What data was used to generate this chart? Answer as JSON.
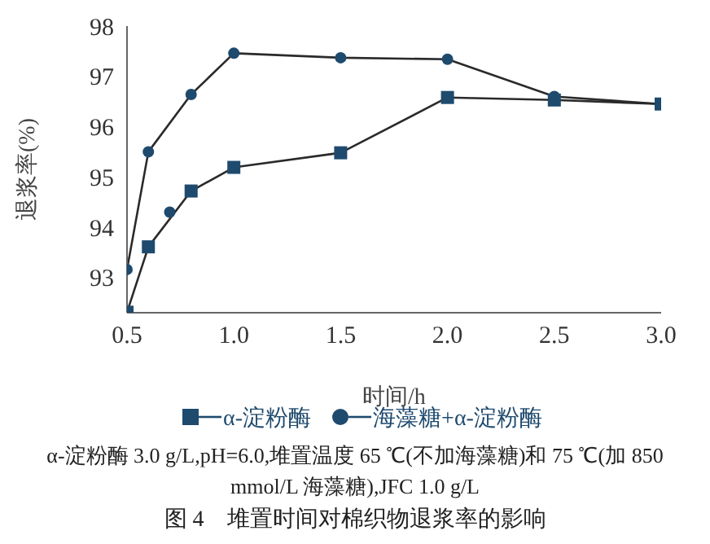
{
  "chart_data": {
    "type": "line",
    "title": "图 4　堆置时间对棉织物退浆率的影响",
    "xlabel": "时间/h",
    "ylabel": "退浆率(%)",
    "x": [
      0.5,
      0.6,
      0.8,
      1.0,
      1.5,
      2.0,
      2.5,
      3.0
    ],
    "series": [
      {
        "name": "α-淀粉酶",
        "color": "#1e4a6e",
        "marker": "square",
        "values": [
          92.31,
          93.61,
          94.72,
          95.19,
          95.48,
          96.58,
          96.53,
          96.45
        ]
      },
      {
        "name": "海藻糖+α-淀粉酶",
        "color": "#1e4a6e",
        "marker": "circle",
        "x": [
          0.5,
          0.6,
          0.8,
          1.0,
          1.5,
          2.0,
          2.5,
          3.0
        ],
        "values": [
          93.16,
          95.5,
          96.64,
          97.46,
          97.37,
          97.34,
          96.6,
          96.45
        ]
      },
      {
        "type": "scatter",
        "color": "#1e4a6e",
        "marker": "circle",
        "x": [
          0.7
        ],
        "values": [
          94.3
        ]
      }
    ],
    "xlim": [
      0.5,
      3.0
    ],
    "xticks": [
      {
        "value": 0.5,
        "label": "0.5"
      },
      {
        "value": 1.0,
        "label": "1.0"
      },
      {
        "value": 1.5,
        "label": "1.5"
      },
      {
        "value": 2.0,
        "label": "2.0"
      },
      {
        "value": 2.5,
        "label": "2.5"
      },
      {
        "value": 3.0,
        "label": "3.0"
      }
    ],
    "ylim": [
      92.3,
      98
    ],
    "yticks": [
      93,
      94,
      95,
      96,
      97,
      98
    ],
    "grid": false,
    "legend": "bottom",
    "annotations": [
      "α-淀粉酶 3.0 g/L,pH=6.0,堆置温度 65 ℃(不加海藻糖)和 75 ℃(加 850 mmol/L 海藻糖),JFC 1.0 g/L"
    ]
  }
}
